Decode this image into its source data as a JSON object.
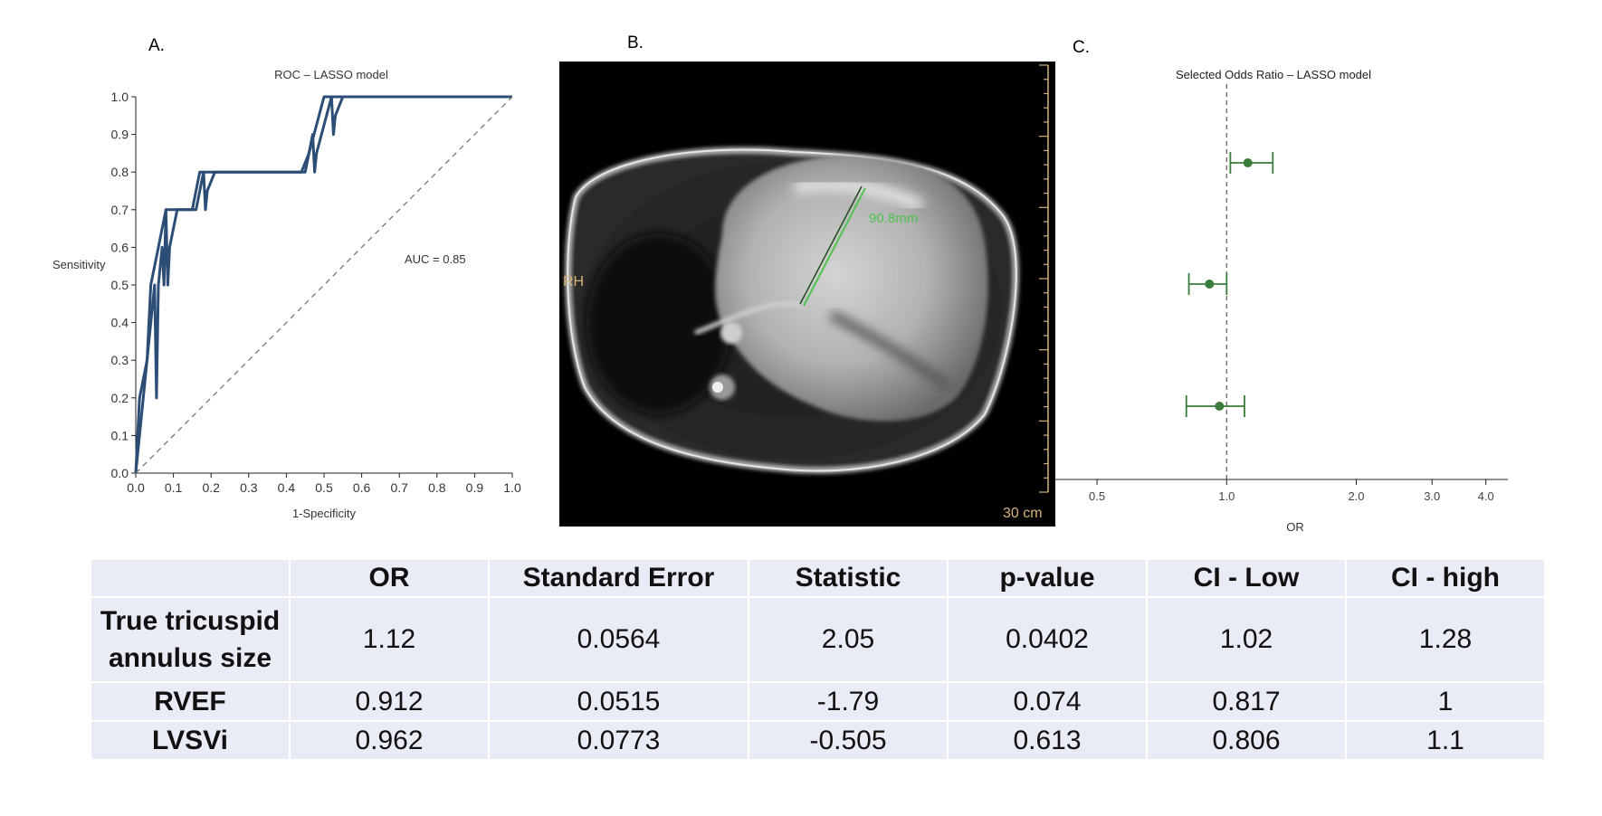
{
  "panels": {
    "a": "A.",
    "b": "B.",
    "c": "C."
  },
  "chart_data": [
    {
      "type": "line",
      "title": "ROC – LASSO model",
      "xlabel": "1-Specificity",
      "ylabel": "Sensitivity",
      "xlim": [
        0,
        1
      ],
      "ylim": [
        0,
        1
      ],
      "xticks": [
        "0.0",
        "0.1",
        "0.2",
        "0.3",
        "0.4",
        "0.5",
        "0.6",
        "0.7",
        "0.8",
        "0.9",
        "1.0"
      ],
      "yticks": [
        "0.0",
        "0.1",
        "0.2",
        "0.3",
        "0.4",
        "0.5",
        "0.6",
        "0.7",
        "0.8",
        "0.9",
        "1.0"
      ],
      "annotation": "AUC = 0.85",
      "series": [
        {
          "color": "#2c4d75",
          "x": [
            0.0,
            0.02,
            0.05,
            0.055,
            0.06,
            0.07,
            0.075,
            0.08,
            0.085,
            0.09,
            0.11,
            0.16,
            0.18,
            0.185,
            0.19,
            0.21,
            0.45,
            0.47,
            0.475,
            0.48,
            0.52,
            0.525,
            0.53,
            0.55,
            1.0
          ],
          "y": [
            0.0,
            0.2,
            0.5,
            0.2,
            0.5,
            0.6,
            0.5,
            0.7,
            0.5,
            0.6,
            0.7,
            0.7,
            0.8,
            0.7,
            0.75,
            0.8,
            0.8,
            0.9,
            0.8,
            0.85,
            1.0,
            0.9,
            0.95,
            1.0,
            1.0
          ]
        },
        {
          "color": "#2c4d75",
          "x": [
            0.0,
            0.01,
            0.03,
            0.04,
            0.06,
            0.08,
            0.1,
            0.15,
            0.17,
            0.2,
            0.25,
            0.44,
            0.46,
            0.5,
            0.51,
            0.55,
            1.0
          ],
          "y": [
            0.0,
            0.2,
            0.3,
            0.5,
            0.6,
            0.7,
            0.7,
            0.7,
            0.8,
            0.8,
            0.8,
            0.8,
            0.85,
            1.0,
            1.0,
            1.0,
            1.0
          ]
        },
        {
          "color": "#777777",
          "dashed": true,
          "x": [
            0,
            1
          ],
          "y": [
            0,
            1
          ]
        }
      ]
    },
    {
      "type": "scatter",
      "title": "Selected Odds Ratio – LASSO model",
      "xlabel": "OR",
      "xscale": "log",
      "xlim": [
        0.4,
        4.5
      ],
      "xticks": [
        "0.5",
        "1.0",
        "2.0",
        "3.0",
        "4.0"
      ],
      "reference_line": 1.0,
      "color": "#3a7d3a",
      "points": [
        {
          "or": 1.12,
          "ci_low": 1.02,
          "ci_high": 1.28
        },
        {
          "or": 0.912,
          "ci_low": 0.817,
          "ci_high": 1
        },
        {
          "or": 0.962,
          "ci_low": 0.806,
          "ci_high": 1.1
        }
      ]
    },
    {
      "type": "table",
      "columns": [
        "",
        "OR",
        "Standard Error",
        "Statistic",
        "p-value",
        "CI - Low",
        "CI - high"
      ],
      "rows": [
        {
          "label": "True tricuspid annulus size",
          "label_lines": [
            "True tricuspid",
            "annulus size"
          ],
          "values": [
            "1.12",
            "0.0564",
            "2.05",
            "0.0402",
            "1.02",
            "1.28"
          ]
        },
        {
          "label": "RVEF",
          "label_lines": [
            "RVEF"
          ],
          "values": [
            "0.912",
            "0.0515",
            "-1.79",
            "0.074",
            "0.817",
            "1"
          ]
        },
        {
          "label": "LVSVi",
          "label_lines": [
            "LVSVi"
          ],
          "values": [
            "0.962",
            "0.0773",
            "-0.505",
            "0.613",
            "0.806",
            "1.1"
          ]
        }
      ]
    }
  ],
  "mri": {
    "measurement": "90.8mm",
    "orientation": "RH",
    "scale": "30 cm",
    "colors": {
      "measure": "#4fc24f",
      "overlay": "#d8b27a"
    }
  }
}
